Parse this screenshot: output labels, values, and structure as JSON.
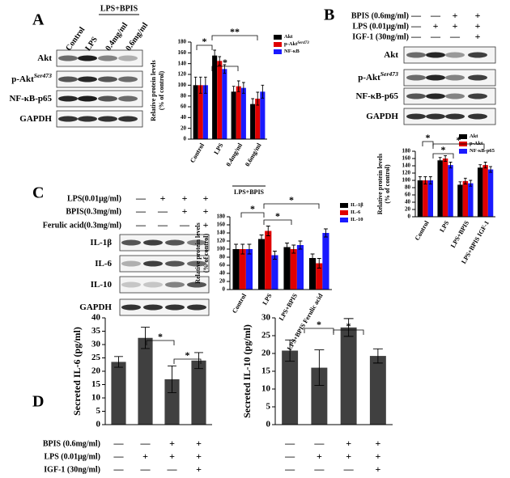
{
  "panels": {
    "A": {
      "letter": "A",
      "lanes": [
        "Control",
        "LPS",
        "0.4mg/ml",
        "0.6mg/ml"
      ],
      "lane_group": "LPS+BPIS",
      "rows": [
        {
          "label": "Akt"
        },
        {
          "label": "p-Akt",
          "sup": "Ser473"
        },
        {
          "label": "NF-κB-p65"
        },
        {
          "label": "GAPDH"
        }
      ]
    },
    "B": {
      "letter": "B",
      "treatments": [
        {
          "label": "BPIS (0.6mg/ml)",
          "signs": [
            "—",
            "—",
            "+",
            "+"
          ]
        },
        {
          "label": "LPS (0.01μg/ml)",
          "signs": [
            "—",
            "+",
            "+",
            "+"
          ]
        },
        {
          "label": "IGF-1 (30ng/ml)",
          "signs": [
            "—",
            "—",
            "—",
            "+"
          ]
        }
      ],
      "rows": [
        {
          "label": "Akt"
        },
        {
          "label": "p-Akt",
          "sup": "Ser473"
        },
        {
          "label": "NF-κB-p65"
        },
        {
          "label": "GAPDH"
        }
      ]
    },
    "C": {
      "letter": "C",
      "treatments": [
        {
          "label": "LPS(0.01μg/ml)",
          "signs": [
            "—",
            "+",
            "+",
            "+"
          ]
        },
        {
          "label": "BPIS(0.3mg/ml)",
          "signs": [
            "—",
            "—",
            "+",
            "+"
          ]
        },
        {
          "label": "Ferulic acid(0.3mg/ml)",
          "signs": [
            "—",
            "—",
            "—",
            "+"
          ]
        }
      ],
      "rows": [
        {
          "label": "IL-1β"
        },
        {
          "label": "IL-6"
        },
        {
          "label": "IL-10"
        },
        {
          "label": "GAPDH"
        }
      ]
    },
    "D": {
      "letter": "D",
      "treatments": [
        {
          "label": "BPIS (0.6mg/ml)",
          "signs": [
            "—",
            "—",
            "+",
            "+"
          ]
        },
        {
          "label": "LPS (0.01μg/ml)",
          "signs": [
            "—",
            "+",
            "+",
            "+"
          ]
        },
        {
          "label": "IGF-1 (30ng/ml)",
          "signs": [
            "—",
            "—",
            "—",
            "+"
          ]
        }
      ]
    }
  },
  "chart_data": [
    {
      "type": "bar",
      "ylabel": [
        "Relative protein levels",
        "(% of control)"
      ],
      "categories": [
        "Control",
        "LPS",
        "0.4mg/ml",
        "0.6mg/ml"
      ],
      "group_label": "LPS+BPIS",
      "ylim": [
        0,
        180
      ],
      "yticks": [
        0,
        20,
        40,
        60,
        80,
        100,
        120,
        140,
        160,
        180
      ],
      "annotations": [
        "*",
        "*",
        "**"
      ],
      "series": [
        {
          "name": "Akt",
          "color": "#000000",
          "values": [
            100,
            155,
            88,
            65
          ],
          "errors": [
            15,
            10,
            10,
            10
          ]
        },
        {
          "name": "p-Akt",
          "name_sup": "Ser473",
          "color": "#e00000",
          "values": [
            100,
            145,
            98,
            75
          ],
          "errors": [
            15,
            8,
            10,
            12
          ]
        },
        {
          "name": "NF-κB",
          "color": "#1a1aff",
          "values": [
            100,
            130,
            95,
            88
          ],
          "errors": [
            15,
            8,
            10,
            12
          ]
        }
      ]
    },
    {
      "type": "bar",
      "ylabel": [
        "Relative protein levels",
        "(% of control)"
      ],
      "categories": [
        "Control",
        "LPS",
        "LPS+BPIS",
        "LPS+BPIS IGF-1"
      ],
      "ylim": [
        0,
        180
      ],
      "yticks": [
        0,
        20,
        40,
        60,
        80,
        100,
        120,
        140,
        160,
        180
      ],
      "annotations": [
        "*",
        "*",
        "*"
      ],
      "series": [
        {
          "name": "Akt",
          "color": "#000000",
          "values": [
            100,
            155,
            88,
            135
          ],
          "errors": [
            10,
            8,
            8,
            8
          ]
        },
        {
          "name": "p-Akt",
          "color": "#e00000",
          "values": [
            100,
            160,
            98,
            142
          ],
          "errors": [
            10,
            8,
            8,
            8
          ]
        },
        {
          "name": "NF-κB-p65",
          "color": "#1a1aff",
          "values": [
            100,
            142,
            92,
            130
          ],
          "errors": [
            10,
            8,
            8,
            8
          ]
        }
      ]
    },
    {
      "type": "bar",
      "ylabel": [
        "Relative protein levels",
        "(% of control)"
      ],
      "categories": [
        "Control",
        "LPS",
        "LPS+BPIS",
        "LPS+BPIS Ferulic acid"
      ],
      "ylim": [
        0,
        180
      ],
      "yticks": [
        0,
        20,
        40,
        60,
        80,
        100,
        120,
        140,
        160,
        180
      ],
      "annotations": [
        "*",
        "*",
        "*"
      ],
      "series": [
        {
          "name": "IL-1β",
          "color": "#000000",
          "values": [
            100,
            125,
            105,
            78
          ],
          "errors": [
            12,
            10,
            10,
            10
          ]
        },
        {
          "name": "IL-6",
          "color": "#e00000",
          "values": [
            100,
            145,
            100,
            65
          ],
          "errors": [
            12,
            12,
            10,
            12
          ]
        },
        {
          "name": "IL-10",
          "color": "#1a1aff",
          "values": [
            100,
            85,
            110,
            140
          ],
          "errors": [
            12,
            10,
            10,
            10
          ]
        }
      ]
    },
    {
      "type": "bar",
      "ylabel": "Secreted IL-6 (pg/ml)",
      "categories": [
        null,
        null,
        null,
        null
      ],
      "color": "#404040",
      "values": [
        23.5,
        32.5,
        17,
        24
      ],
      "errors": [
        2,
        4,
        5,
        3
      ],
      "ylim": [
        0,
        40
      ],
      "yticks": [
        0,
        5,
        10,
        15,
        20,
        25,
        30,
        35,
        40
      ],
      "annotations": [
        "*",
        "*"
      ]
    },
    {
      "type": "bar",
      "ylabel": "Secreted IL-10 (pg/ml)",
      "categories": [
        null,
        null,
        null,
        null
      ],
      "color": "#404040",
      "values": [
        20.8,
        16,
        27.3,
        19.3
      ],
      "errors": [
        3,
        5,
        2.5,
        2
      ],
      "ylim": [
        0,
        30
      ],
      "yticks": [
        0,
        5,
        10,
        15,
        20,
        25,
        30
      ],
      "annotations": [
        "*",
        "*"
      ]
    }
  ]
}
